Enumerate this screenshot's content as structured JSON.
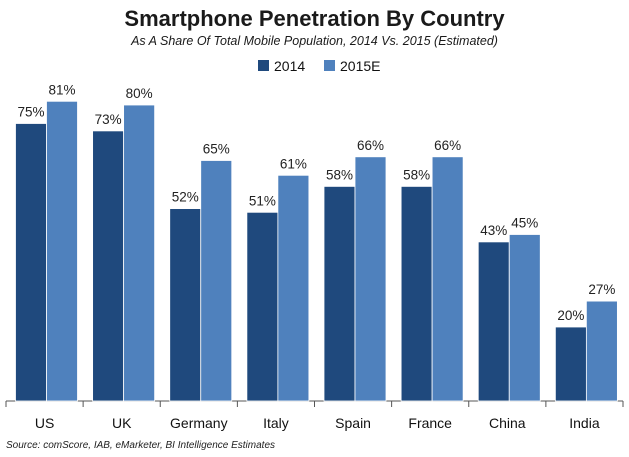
{
  "chart_data": {
    "type": "bar",
    "title": "Smartphone Penetration By Country",
    "subtitle": "As A Share Of Total Mobile Population, 2014 Vs. 2015 (Estimated)",
    "categories": [
      "US",
      "UK",
      "Germany",
      "Italy",
      "Spain",
      "France",
      "China",
      "India"
    ],
    "series": [
      {
        "name": "2014",
        "values": [
          75,
          73,
          52,
          51,
          58,
          58,
          43,
          20
        ],
        "color": "#1f497d"
      },
      {
        "name": "2015E",
        "values": [
          81,
          80,
          65,
          61,
          66,
          66,
          45,
          27
        ],
        "color": "#4f81bd"
      }
    ],
    "value_suffix": "%",
    "ylim": [
      0,
      100
    ],
    "grid": false,
    "legend_position": "top-center"
  },
  "source": "Source: comScore, IAB, eMarketer, BI Intelligence Estimates"
}
